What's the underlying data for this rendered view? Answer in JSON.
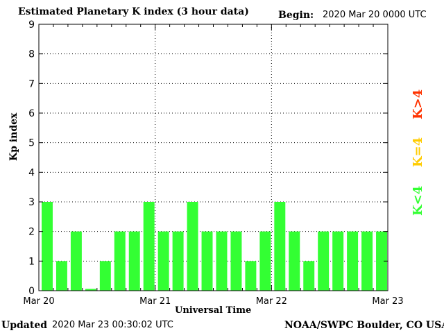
{
  "header": {
    "title": "Estimated Planetary K index (3 hour data)",
    "begin_label": "Begin:",
    "begin_value": "2020 Mar 20 0000 UTC"
  },
  "footer": {
    "updated_label": "Updated",
    "updated_value": "2020 Mar 23 00:30:02 UTC",
    "credit": "NOAA/SWPC Boulder, CO USA"
  },
  "legend": {
    "low": "K<4",
    "mid": "K=4",
    "high": "K>4"
  },
  "colors": {
    "low": "#33ff33",
    "mid": "#ffcc00",
    "high": "#ff3300",
    "axis": "#000000"
  },
  "chart_data": {
    "type": "bar",
    "xlabel": "Universal Time",
    "ylabel": "Kp index",
    "ylim": [
      0,
      9
    ],
    "yticks": [
      "0",
      "1",
      "2",
      "3",
      "4",
      "5",
      "6",
      "7",
      "8",
      "9"
    ],
    "xtick_labels": [
      "Mar 20",
      "Mar 21",
      "Mar 22",
      "Mar 23"
    ],
    "interval_hours": 3,
    "grid": "dotted",
    "series": [
      {
        "values": [
          3,
          1,
          2,
          0,
          1,
          2,
          2,
          3,
          2,
          2,
          3,
          2,
          2,
          2,
          1,
          2,
          3,
          2,
          1,
          2,
          2,
          2,
          2,
          2
        ]
      }
    ]
  }
}
